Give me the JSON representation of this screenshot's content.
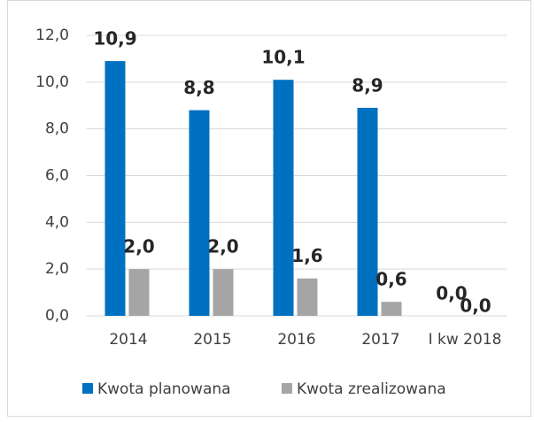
{
  "chart_data": {
    "type": "bar",
    "categories": [
      "2014",
      "2015",
      "2016",
      "2017",
      "I kw 2018"
    ],
    "series": [
      {
        "name": "Kwota planowana",
        "color": "#0070c0",
        "values": [
          10.9,
          8.8,
          10.1,
          8.9,
          0.0
        ],
        "value_labels": [
          "10,9",
          "8,8",
          "10,1",
          "8,9",
          "0,0"
        ]
      },
      {
        "name": "Kwota zrealizowana",
        "color": "#a5a5a5",
        "values": [
          2.0,
          2.0,
          1.6,
          0.6,
          0.0
        ],
        "value_labels": [
          "2,0",
          "2,0",
          "1,6",
          "0,6",
          "0,0"
        ]
      }
    ],
    "ylim": [
      0,
      12
    ],
    "yticks": [
      {
        "value": 0,
        "label": "0,0"
      },
      {
        "value": 2,
        "label": "2,0"
      },
      {
        "value": 4,
        "label": "4,0"
      },
      {
        "value": 6,
        "label": "6,0"
      },
      {
        "value": 8,
        "label": "8,0"
      },
      {
        "value": 10,
        "label": "10,0"
      },
      {
        "value": 12,
        "label": "12,0"
      }
    ],
    "grid": true,
    "legend": "bottom"
  }
}
